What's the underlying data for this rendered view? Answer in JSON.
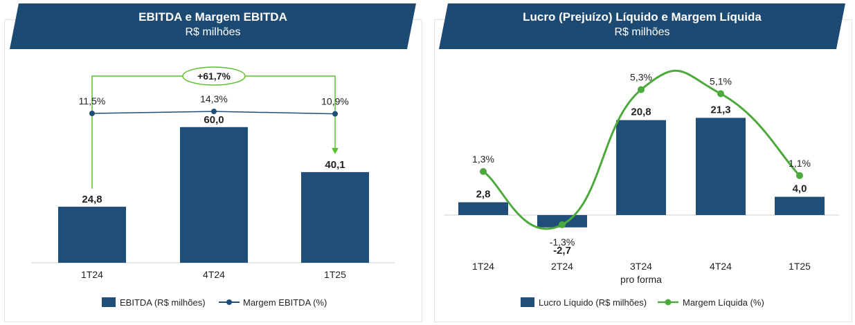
{
  "colors": {
    "banner": "#1d4a73",
    "bar": "#1f4e79",
    "ebitda_margin_line": "#1f4e79",
    "net_margin_line": "#4caa3c",
    "growth_arrow": "#5cc02e",
    "text": "#222222"
  },
  "left": {
    "title": "EBITDA e Margem EBITDA",
    "subtitle": "R$ milhões",
    "growth_label": "+61,7%",
    "legend": {
      "bars": "EBITDA (R$ milhões)",
      "line": "Margem EBITDA (%)"
    }
  },
  "right": {
    "title": "Lucro (Prejuízo) Líquido e Margem Líquida",
    "subtitle": "R$ milhões",
    "legend": {
      "bars": "Lucro Líquido (R$ milhões)",
      "line": "Margem Líquida (%)"
    }
  },
  "chart_data": [
    {
      "type": "bar",
      "categories": [
        "1T24",
        "4T24",
        "1T25"
      ],
      "series": [
        {
          "name": "EBITDA (R$ milhões)",
          "values": [
            24.8,
            60.0,
            40.1
          ],
          "labels": [
            "24,8",
            "60,0",
            "40,1"
          ]
        },
        {
          "name": "Margem EBITDA (%)",
          "type": "line",
          "values": [
            11.5,
            14.3,
            10.9
          ],
          "labels": [
            "11,5%",
            "14,3%",
            "10,9%"
          ]
        }
      ],
      "annotation": "+61,7%"
    },
    {
      "type": "bar",
      "categories": [
        "1T24",
        "2T24",
        "3T24\npro forma",
        "4T24",
        "1T25"
      ],
      "category_lines": [
        [
          "1T24"
        ],
        [
          "2T24"
        ],
        [
          "3T24",
          "pro forma"
        ],
        [
          "4T24"
        ],
        [
          "1T25"
        ]
      ],
      "series": [
        {
          "name": "Lucro Líquido (R$ milhões)",
          "values": [
            2.8,
            -2.7,
            20.8,
            21.3,
            4.0
          ],
          "labels": [
            "2,8",
            "-2,7",
            "20,8",
            "21,3",
            "4,0"
          ]
        },
        {
          "name": "Margem Líquida (%)",
          "type": "line",
          "values": [
            1.3,
            -1.3,
            5.3,
            5.1,
            1.1
          ],
          "labels": [
            "1,3%",
            "-1,3%",
            "5,3%",
            "5,1%",
            "1,1%"
          ]
        }
      ]
    }
  ]
}
